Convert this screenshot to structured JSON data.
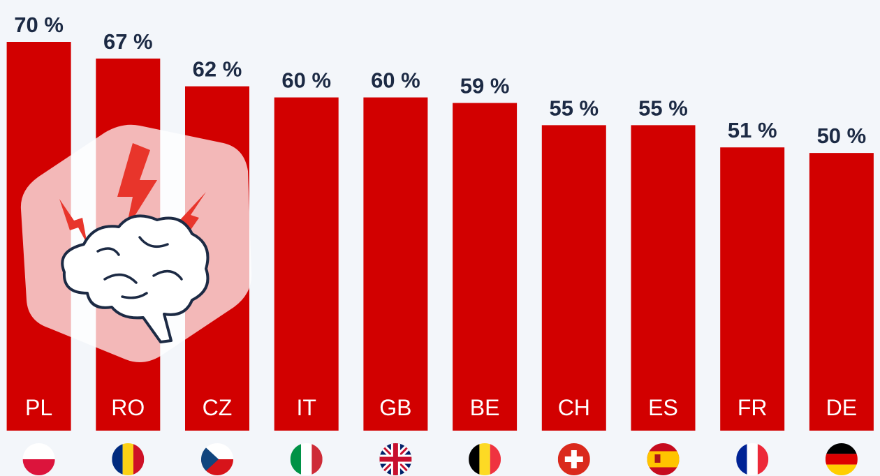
{
  "chart_data": {
    "type": "bar",
    "categories": [
      "PL",
      "RO",
      "CZ",
      "IT",
      "GB",
      "BE",
      "CH",
      "ES",
      "FR",
      "DE"
    ],
    "values": [
      70,
      67,
      62,
      60,
      60,
      59,
      55,
      55,
      51,
      50
    ],
    "value_labels": [
      "70 %",
      "67 %",
      "62 %",
      "60 %",
      "60 %",
      "59 %",
      "55 %",
      "55 %",
      "51 %",
      "50 %"
    ],
    "color": "#d20000",
    "ylim": [
      0,
      70
    ]
  }
}
